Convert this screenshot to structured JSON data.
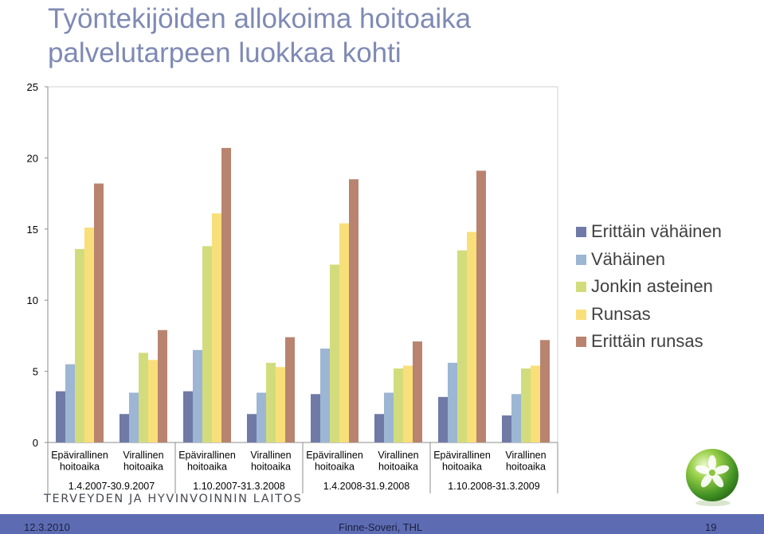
{
  "title_lines": [
    "Työntekijöiden allokoima hoitoaika",
    "palvelutarpeen luokkaa kohti"
  ],
  "logo_text": "TERVEYDEN JA HYVINVOINNIN LAITOS",
  "footer": {
    "date": "12.3.2010",
    "source": "Finne-Soveri, THL",
    "page": "19"
  },
  "chart_data": {
    "type": "bar",
    "title": "Työntekijöiden allokoima hoitoaika palvelutarpeen luokkaa kohti",
    "xlabel": "",
    "ylabel": "",
    "ylim": [
      0,
      25
    ],
    "yticks": [
      0,
      5,
      10,
      15,
      20,
      25
    ],
    "grid": false,
    "legend_position": "right",
    "periods": [
      "1.4.2007-30.9.2007",
      "1.10.2007-31.3.2008",
      "1.4.2008-31.9.2008",
      "1.10.2008-31.3.2009"
    ],
    "categories": [
      [
        "Epävirallinen",
        "hoitoaika"
      ],
      [
        "Virallinen",
        "hoitoaika"
      ],
      [
        "Epävirallinen",
        "hoitoaika"
      ],
      [
        "Virallinen",
        "hoitoaika"
      ],
      [
        "Epävirallinen",
        "hoitoaika"
      ],
      [
        "Virallinen",
        "hoitoaika"
      ],
      [
        "Epävirallinen",
        "hoitoaika"
      ],
      [
        "Virallinen",
        "hoitoaika"
      ]
    ],
    "series": [
      {
        "name": "Erittäin vähäinen",
        "color": "#6f7aa6",
        "values": [
          3.6,
          2.0,
          3.6,
          2.0,
          3.4,
          2.0,
          3.2,
          1.9
        ]
      },
      {
        "name": "Vähäinen",
        "color": "#9db6d3",
        "values": [
          5.5,
          3.5,
          6.5,
          3.5,
          6.6,
          3.5,
          5.6,
          3.4
        ]
      },
      {
        "name": "Jonkin asteinen",
        "color": "#d3dc7c",
        "values": [
          13.6,
          6.3,
          13.8,
          5.6,
          12.5,
          5.2,
          13.5,
          5.2
        ]
      },
      {
        "name": "Runsas",
        "color": "#f8df7a",
        "values": [
          15.1,
          5.8,
          16.1,
          5.3,
          15.4,
          5.4,
          14.8,
          5.4
        ]
      },
      {
        "name": "Erittäin runsas",
        "color": "#b88470",
        "values": [
          18.2,
          7.9,
          20.7,
          7.4,
          18.5,
          7.1,
          19.1,
          7.2
        ]
      }
    ]
  }
}
